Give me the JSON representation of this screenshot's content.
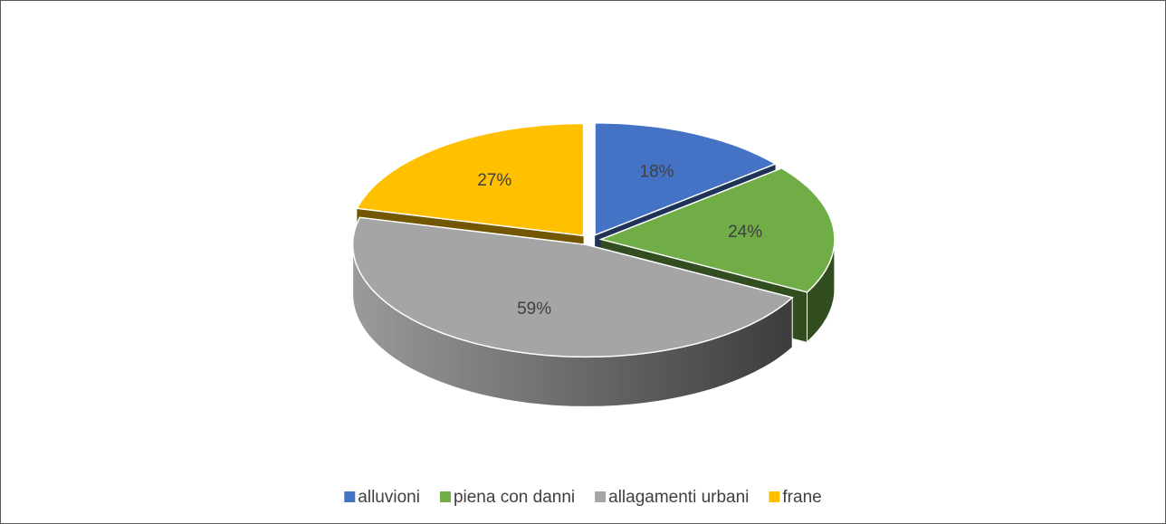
{
  "chart_data": {
    "type": "pie",
    "categories": [
      "alluvioni",
      "piena con danni",
      "allagamenti urbani",
      "frane"
    ],
    "values": [
      18,
      24,
      59,
      27
    ],
    "value_labels": [
      "18%",
      "24%",
      "59%",
      "27%"
    ],
    "colors": [
      "#4472c4",
      "#70ad47",
      "#a5a5a5",
      "#ffc000"
    ],
    "legend": "bottom"
  }
}
